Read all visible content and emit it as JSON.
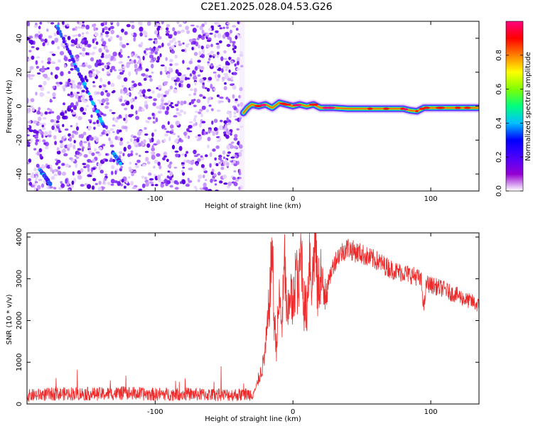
{
  "title": "C2E1.2025.028.04.53.G26",
  "chart_data": [
    {
      "type": "heatmap",
      "xlabel": "Height of straight line (km)",
      "ylabel": "Frequency (Hz)",
      "xlim": [
        -193,
        135
      ],
      "ylim": [
        -50,
        50
      ],
      "xticks": [
        -100,
        0,
        100
      ],
      "yticks": [
        -40,
        -20,
        0,
        20,
        40
      ],
      "colorbar": {
        "label": "Normalized spectral amplitude",
        "range": [
          0,
          1
        ],
        "ticks": [
          0.0,
          0.2,
          0.4,
          0.6,
          0.8
        ],
        "colormap": [
          "#ffffff",
          "#9400d3",
          "#4b00ff",
          "#0000ff",
          "#00bfff",
          "#00ff7f",
          "#7fff00",
          "#ffff00",
          "#ff7f00",
          "#ff0000",
          "#ff0080"
        ]
      },
      "noise_region_x": [
        -193,
        -37
      ],
      "streak_segments": [
        {
          "x": [
            -171,
            -137
          ],
          "y": [
            47,
            -12
          ]
        },
        {
          "x": [
            -131,
            -125
          ],
          "y": [
            -27,
            -34
          ]
        },
        {
          "x": [
            -183,
            -176
          ],
          "y": [
            -38,
            -46
          ]
        }
      ],
      "signal_track": {
        "x": [
          -36,
          -33,
          -30,
          -25,
          -20,
          -15,
          -10,
          -5,
          0,
          5,
          10,
          15,
          20,
          30,
          40,
          50,
          60,
          70,
          80,
          85,
          90,
          95,
          100,
          110,
          120,
          135
        ],
        "y": [
          -4,
          -1,
          1,
          0,
          1,
          -1,
          2,
          1,
          0,
          1,
          0,
          1,
          -1,
          -1,
          -1.5,
          -1.5,
          -1.5,
          -1.5,
          -1.5,
          -2.5,
          -3,
          -1,
          -1,
          -1,
          -1,
          -1
        ]
      },
      "grid": false
    },
    {
      "type": "line",
      "xlabel": "Height of straight line (km)",
      "ylabel": "SNR (10 * v/v)",
      "xlim": [
        -193,
        135
      ],
      "ylim": [
        0,
        4100
      ],
      "xticks": [
        -100,
        0,
        100
      ],
      "yticks": [
        0,
        1000,
        2000,
        3000,
        4000
      ],
      "color": "#ee2a2a",
      "series": [
        {
          "x": [
            -193,
            -180,
            -160,
            -140,
            -120,
            -110,
            -100,
            -80,
            -60,
            -40,
            -30,
            -27,
            -25,
            -22,
            -20,
            -18,
            -16,
            -15,
            -14,
            -12,
            -10,
            -8,
            -6,
            -4,
            -2,
            0,
            2,
            4,
            6,
            8,
            10,
            12,
            14,
            16,
            18,
            20,
            22,
            24,
            26,
            28,
            30,
            32,
            34,
            36,
            38,
            40,
            42,
            45,
            50,
            55,
            60,
            65,
            70,
            75,
            80,
            85,
            90,
            93,
            95,
            96,
            97,
            100,
            105,
            110,
            115,
            120,
            125,
            130,
            135
          ],
          "y": [
            200,
            230,
            250,
            240,
            260,
            240,
            230,
            240,
            220,
            220,
            240,
            350,
            600,
            900,
            1300,
            2000,
            3100,
            4050,
            2200,
            1400,
            2500,
            1900,
            3400,
            1800,
            2900,
            2100,
            3300,
            2600,
            3800,
            2400,
            2200,
            3700,
            2800,
            4100,
            2600,
            3200,
            2500,
            3000,
            2900,
            3200,
            3400,
            3500,
            3600,
            3650,
            3700,
            3750,
            3700,
            3650,
            3600,
            3500,
            3450,
            3350,
            3250,
            3180,
            3150,
            3100,
            3050,
            2950,
            2300,
            2600,
            2900,
            2850,
            2800,
            2750,
            2650,
            2600,
            2500,
            2450,
            2350
          ]
        }
      ],
      "grid": false
    }
  ]
}
